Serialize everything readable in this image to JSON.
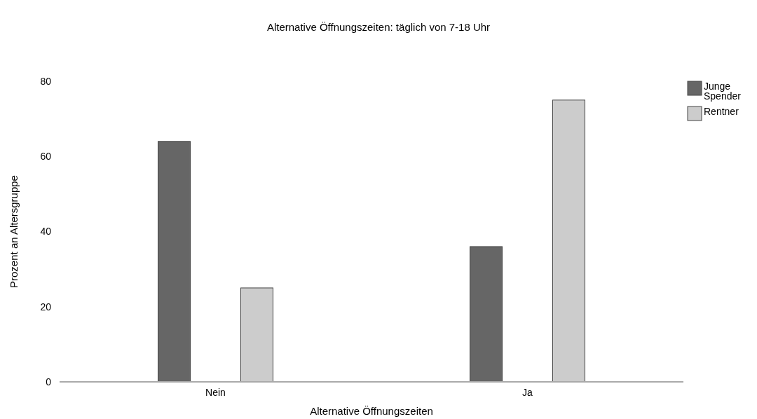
{
  "chart_data": {
    "type": "bar",
    "title": "Alternative Öffnungszeiten: täglich von 7-18 Uhr",
    "xlabel": "Alternative Öffnungszeiten",
    "ylabel": "Prozent an Altersgruppe",
    "categories": [
      "Nein",
      "Ja"
    ],
    "series": [
      {
        "name": "Junge Spender",
        "color": "#666666",
        "values": [
          64,
          36
        ]
      },
      {
        "name": "Rentner",
        "color": "#cccccc",
        "values": [
          25,
          75
        ]
      }
    ],
    "ylim": [
      0,
      80
    ],
    "yticks": [
      0,
      20,
      40,
      60,
      80
    ],
    "grid": false,
    "legend": "top right"
  }
}
